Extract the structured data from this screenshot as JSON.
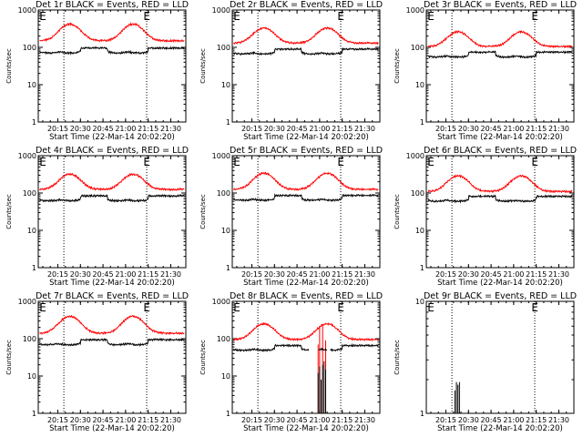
{
  "figure": {
    "ylabel": "Counts/sec",
    "xlabel": "Start Time (22-Mar-14 20:02:20)",
    "colors": {
      "events": "#000000",
      "lld": "#ff0000"
    },
    "marker_label": "E"
  },
  "chart_data": [
    {
      "type": "line",
      "title": "Det 1r BLACK = Events, RED = LLD",
      "yscale": "log",
      "ylim": [
        1,
        1000
      ],
      "yticks": [
        "1",
        "10",
        "100",
        "1000"
      ],
      "xticks": [
        "20:15",
        "20:30",
        "20:45",
        "21:00",
        "21:15",
        "21:30"
      ],
      "events": {
        "base": 80,
        "amp": 45,
        "gaps": [],
        "spikes": []
      },
      "lld": {
        "base": 150,
        "amp": 420,
        "gaps": [],
        "spikes": []
      },
      "e_marks": [
        "20:04",
        "21:13"
      ]
    },
    {
      "type": "line",
      "title": "Det 2r BLACK = Events, RED = LLD",
      "yscale": "log",
      "ylim": [
        1,
        1000
      ],
      "yticks": [
        "1",
        "10",
        "100",
        "1000"
      ],
      "xticks": [
        "20:15",
        "20:30",
        "20:45",
        "21:00",
        "21:15",
        "21:30"
      ],
      "events": {
        "base": 75,
        "amp": 42,
        "gaps": [],
        "spikes": []
      },
      "lld": {
        "base": 130,
        "amp": 330,
        "gaps": [],
        "spikes": []
      },
      "e_marks": [
        "20:04",
        "21:13"
      ]
    },
    {
      "type": "line",
      "title": "Det 3r BLACK = Events, RED = LLD",
      "yscale": "log",
      "ylim": [
        1,
        1000
      ],
      "yticks": [
        "1",
        "10",
        "100",
        "1000"
      ],
      "xticks": [
        "20:15",
        "20:30",
        "20:45",
        "21:00",
        "21:15",
        "21:30"
      ],
      "events": {
        "base": 62,
        "amp": 35,
        "gaps": [],
        "spikes": []
      },
      "lld": {
        "base": 105,
        "amp": 260,
        "gaps": [],
        "spikes": []
      },
      "e_marks": [
        "20:04",
        "21:13"
      ]
    },
    {
      "type": "line",
      "title": "Det 4r BLACK = Events, RED = LLD",
      "yscale": "log",
      "ylim": [
        1,
        1000
      ],
      "yticks": [
        "1",
        "10",
        "100",
        "1000"
      ],
      "xticks": [
        "20:15",
        "20:30",
        "20:45",
        "21:00",
        "21:15",
        "21:30"
      ],
      "events": {
        "base": 70,
        "amp": 40,
        "gaps": [],
        "spikes": []
      },
      "lld": {
        "base": 125,
        "amp": 320,
        "gaps": [],
        "spikes": []
      },
      "e_marks": [
        "20:04",
        "21:13"
      ]
    },
    {
      "type": "line",
      "title": "Det 5r BLACK = Events, RED = LLD",
      "yscale": "log",
      "ylim": [
        1,
        1000
      ],
      "yticks": [
        "1",
        "10",
        "100",
        "1000"
      ],
      "xticks": [
        "20:15",
        "20:30",
        "20:45",
        "21:00",
        "21:15",
        "21:30"
      ],
      "events": {
        "base": 72,
        "amp": 40,
        "gaps": [],
        "spikes": []
      },
      "lld": {
        "base": 125,
        "amp": 340,
        "gaps": [],
        "spikes": []
      },
      "e_marks": [
        "20:04",
        "21:13"
      ]
    },
    {
      "type": "line",
      "title": "Det 6r BLACK = Events, RED = LLD",
      "yscale": "log",
      "ylim": [
        1,
        1000
      ],
      "yticks": [
        "1",
        "10",
        "100",
        "1000"
      ],
      "xticks": [
        "20:15",
        "20:30",
        "20:45",
        "21:00",
        "21:15",
        "21:30"
      ],
      "events": {
        "base": 68,
        "amp": 38,
        "gaps": [],
        "spikes": []
      },
      "lld": {
        "base": 110,
        "amp": 290,
        "gaps": [],
        "spikes": []
      },
      "e_marks": [
        "20:04",
        "21:13"
      ]
    },
    {
      "type": "line",
      "title": "Det 7r BLACK = Events, RED = LLD",
      "yscale": "log",
      "ylim": [
        1,
        1000
      ],
      "yticks": [
        "1",
        "10",
        "100",
        "1000"
      ],
      "xticks": [
        "20:15",
        "20:30",
        "20:45",
        "21:00",
        "21:15",
        "21:30"
      ],
      "events": {
        "base": 78,
        "amp": 45,
        "gaps": [],
        "spikes": []
      },
      "lld": {
        "base": 140,
        "amp": 400,
        "gaps": [],
        "spikes": []
      },
      "e_marks": [
        "20:04",
        "21:13"
      ]
    },
    {
      "type": "line",
      "title": "Det 8r BLACK = Events, RED = LLD",
      "yscale": "log",
      "ylim": [
        1,
        1000
      ],
      "yticks": [
        "1",
        "10",
        "100",
        "1000"
      ],
      "xticks": [
        "20:15",
        "20:30",
        "20:45",
        "21:00",
        "21:15",
        "21:30"
      ],
      "events": {
        "base": 55,
        "amp": 30,
        "gaps": [
          [
            "20:53",
            "20:59"
          ],
          [
            "21:05",
            "21:07"
          ]
        ],
        "spikes": [
          [
            "20:59",
            12
          ],
          [
            "21:00",
            18
          ],
          [
            "21:01",
            8
          ],
          [
            "21:02",
            20
          ],
          [
            "21:03",
            25
          ],
          [
            "21:04",
            15
          ]
        ]
      },
      "lld": {
        "base": 95,
        "amp": 250,
        "gaps": [],
        "spikes": [
          [
            "20:59",
            70
          ],
          [
            "21:00",
            220
          ],
          [
            "21:02",
            230
          ],
          [
            "21:04",
            90
          ]
        ]
      },
      "e_marks": [
        "20:04",
        "21:13"
      ]
    },
    {
      "type": "line",
      "title": "Det 9r BLACK = Events, RED = LLD",
      "yscale": "log",
      "ylim": [
        1,
        10
      ],
      "yticks": [
        "1",
        "10"
      ],
      "xticks": [
        "20:15",
        "20:30",
        "20:45",
        "21:00",
        "21:15",
        "21:30"
      ],
      "events": {
        "base": 0,
        "amp": 0,
        "gaps": [],
        "spikes": [
          [
            "20:21",
            1.6
          ],
          [
            "20:22",
            1.9
          ],
          [
            "20:23",
            1.8
          ],
          [
            "20:24",
            1.9
          ]
        ]
      },
      "lld": null,
      "e_marks": [
        "20:04",
        "21:13"
      ]
    }
  ]
}
